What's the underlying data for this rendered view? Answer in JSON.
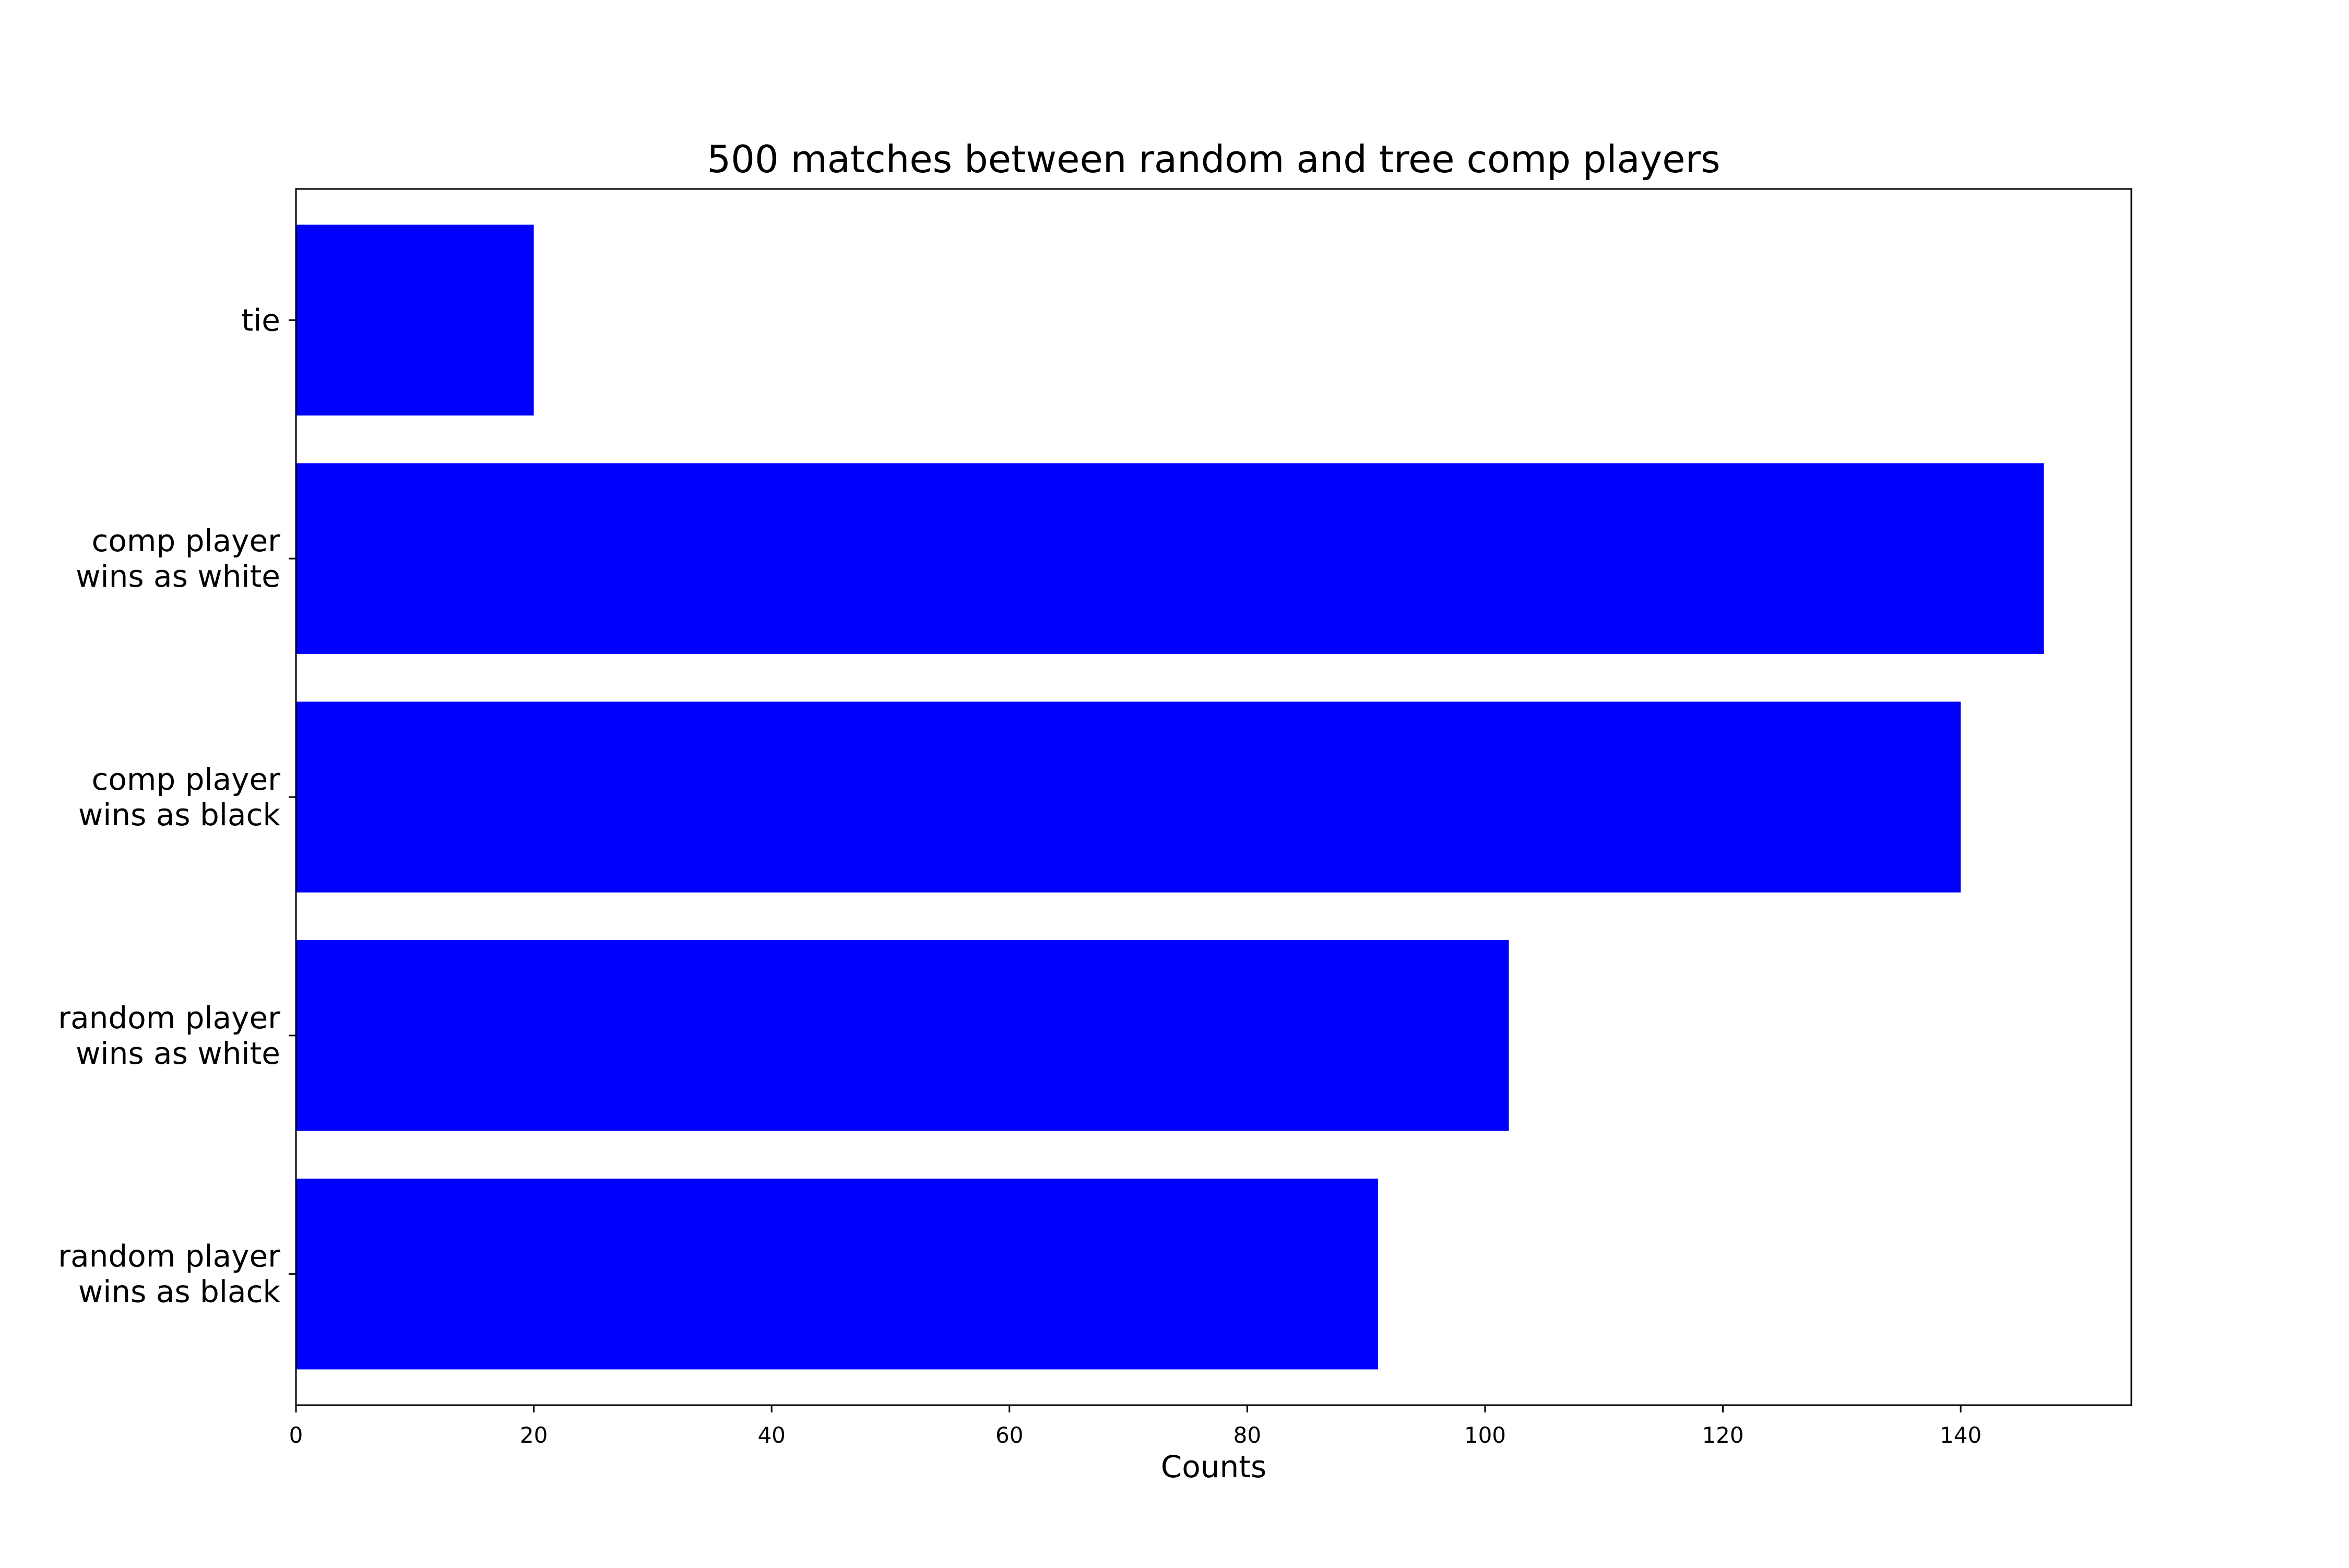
{
  "chart_data": {
    "type": "bar",
    "orientation": "horizontal",
    "title": "500 matches between random and tree comp players",
    "xlabel": "Counts",
    "ylabel": "",
    "categories": [
      "tie",
      "comp player\nwins as white",
      "comp player\nwins as black",
      "random player\nwins as white",
      "random player\nwins as black"
    ],
    "values": [
      20,
      147,
      140,
      102,
      91
    ],
    "xlim": [
      0,
      154.35
    ],
    "xticks": [
      0,
      20,
      40,
      60,
      80,
      100,
      120,
      140
    ],
    "bar_color": "#0000ff",
    "grid": false,
    "legend": "none"
  }
}
